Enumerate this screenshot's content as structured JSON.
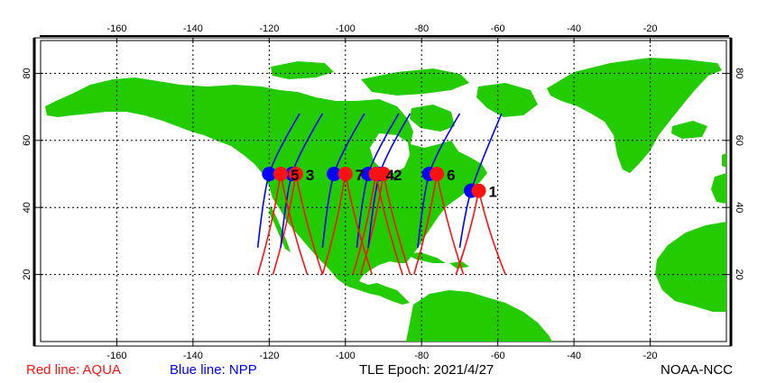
{
  "map": {
    "lon_ticks": [
      -160,
      -140,
      -120,
      -100,
      -80,
      -60,
      -40,
      -20
    ],
    "lat_ticks": [
      20,
      40,
      60,
      80
    ],
    "colors": {
      "land": "#22cc00",
      "aqua": "#ff1111",
      "npp": "#0000ff",
      "grid": "#000000"
    }
  },
  "passes": [
    {
      "label": "1",
      "aqua": {
        "lon": -65,
        "lat": 45
      },
      "npp": {
        "lon": -67,
        "lat": 45
      }
    },
    {
      "label": "2",
      "aqua": {
        "lon": -90,
        "lat": 50
      },
      "npp": {
        "lon": -91,
        "lat": 50
      }
    },
    {
      "label": "3",
      "aqua": {
        "lon": -113,
        "lat": 50
      },
      "npp": {
        "lon": -114,
        "lat": 50
      }
    },
    {
      "label": "4",
      "aqua": {
        "lon": -92,
        "lat": 50
      },
      "npp": {
        "lon": -94,
        "lat": 50
      }
    },
    {
      "label": "5",
      "aqua": {
        "lon": -117,
        "lat": 50
      },
      "npp": {
        "lon": -120,
        "lat": 50
      }
    },
    {
      "label": "6",
      "aqua": {
        "lon": -76,
        "lat": 50
      },
      "npp": {
        "lon": -78,
        "lat": 50
      }
    },
    {
      "label": "7",
      "aqua": {
        "lon": -100,
        "lat": 50
      },
      "npp": {
        "lon": -103,
        "lat": 50
      }
    }
  ],
  "footer": {
    "aqua_legend": "Red line: AQUA",
    "npp_legend": "Blue line: NPP",
    "epoch": "TLE Epoch: 2021/4/27",
    "credit": "NOAA-NCC"
  }
}
